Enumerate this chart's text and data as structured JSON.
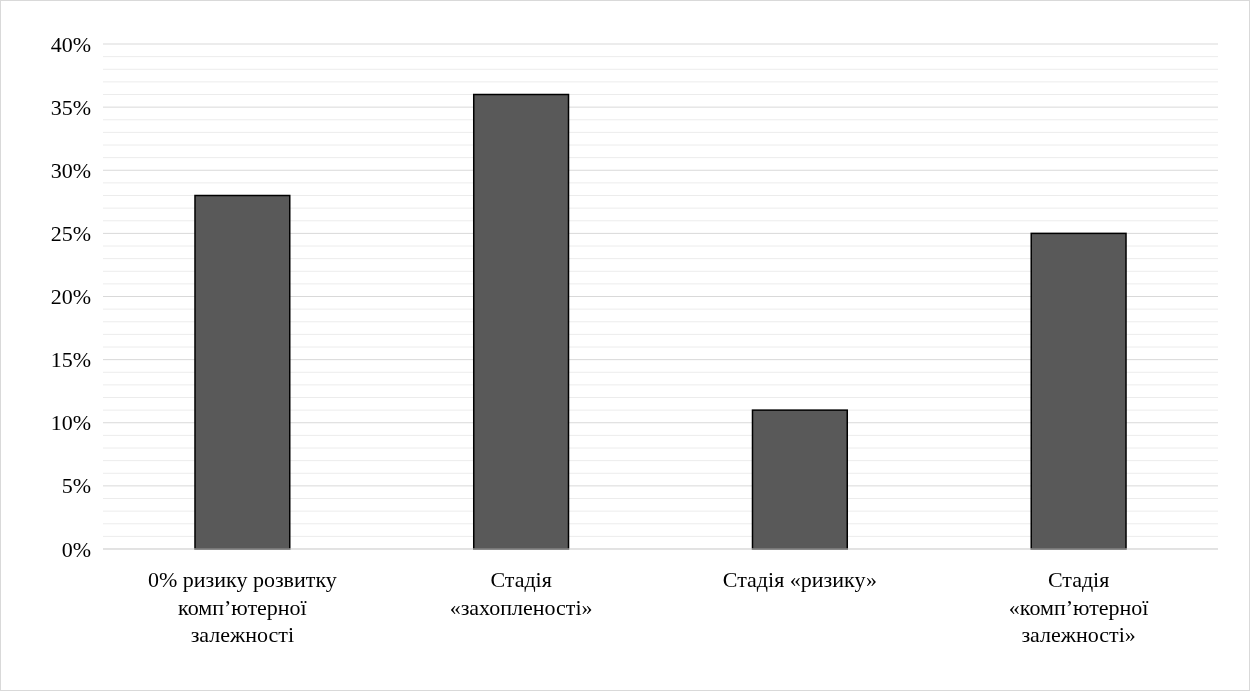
{
  "chart_data": {
    "type": "bar",
    "categories": [
      "0% ризику розвитку комп’ютерної залежності",
      "Стадія «захопленості»",
      "Стадія «ризику»",
      "Стадія «комп’ютерної залежності»"
    ],
    "values": [
      28,
      36,
      11,
      25
    ],
    "color": "#595959",
    "ylim": [
      0,
      40
    ],
    "yticks": [
      {
        "value": 0,
        "label": "0%"
      },
      {
        "value": 1,
        "label": null
      },
      {
        "value": 2,
        "label": null
      },
      {
        "value": 3,
        "label": null
      },
      {
        "value": 4,
        "label": null
      },
      {
        "value": 5,
        "label": "5%"
      },
      {
        "value": 6,
        "label": null
      },
      {
        "value": 7,
        "label": null
      },
      {
        "value": 8,
        "label": null
      },
      {
        "value": 9,
        "label": null
      },
      {
        "value": 10,
        "label": "10%"
      },
      {
        "value": 11,
        "label": null
      },
      {
        "value": 12,
        "label": null
      },
      {
        "value": 13,
        "label": null
      },
      {
        "value": 14,
        "label": null
      },
      {
        "value": 15,
        "label": "15%"
      },
      {
        "value": 16,
        "label": null
      },
      {
        "value": 17,
        "label": null
      },
      {
        "value": 18,
        "label": null
      },
      {
        "value": 19,
        "label": null
      },
      {
        "value": 20,
        "label": "20%"
      },
      {
        "value": 21,
        "label": null
      },
      {
        "value": 22,
        "label": null
      },
      {
        "value": 23,
        "label": null
      },
      {
        "value": 24,
        "label": null
      },
      {
        "value": 25,
        "label": "25%"
      },
      {
        "value": 26,
        "label": null
      },
      {
        "value": 27,
        "label": null
      },
      {
        "value": 28,
        "label": null
      },
      {
        "value": 29,
        "label": null
      },
      {
        "value": 30,
        "label": "30%"
      },
      {
        "value": 31,
        "label": null
      },
      {
        "value": 32,
        "label": null
      },
      {
        "value": 33,
        "label": null
      },
      {
        "value": 34,
        "label": null
      },
      {
        "value": 35,
        "label": "35%"
      },
      {
        "value": 36,
        "label": null
      },
      {
        "value": 37,
        "label": null
      },
      {
        "value": 38,
        "label": null
      },
      {
        "value": 39,
        "label": null
      },
      {
        "value": 40,
        "label": "40%"
      }
    ],
    "grid": "y"
  }
}
